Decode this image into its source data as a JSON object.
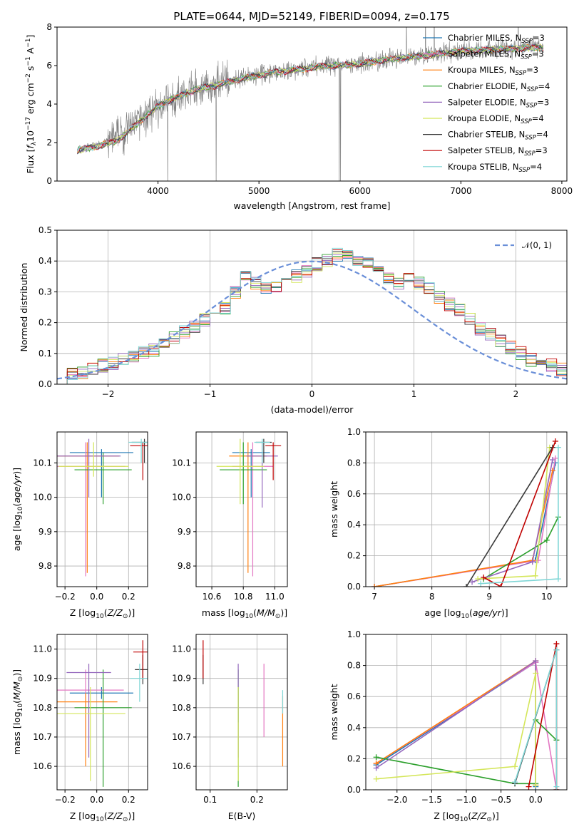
{
  "figure": {
    "title": "PLATE=0644, MJD=52149, FIBERID=0094, z=0.175",
    "colors": {
      "data": "#808080",
      "models": [
        "#1f77b4",
        "#e377c2",
        "#ff7f0e",
        "#2ca02c",
        "#9467bd",
        "#d4e65a",
        "#3a3a3a",
        "#c00000",
        "#7fd6d6"
      ],
      "normal": "#6a8fd8",
      "grid": "#b0b0b0"
    }
  },
  "chart_data": [
    {
      "id": "spectrum",
      "type": "line",
      "xlabel": "wavelength [Angstrom, rest frame]",
      "ylabel": "Flux [f_λ 10^-17 erg cm^-2 s^-1 A^-1]",
      "xlim": [
        3000,
        8050
      ],
      "ylim": [
        0,
        8
      ],
      "xticks": [
        4000,
        5000,
        6000,
        7000,
        8000
      ],
      "yticks": [
        0,
        2,
        4,
        6,
        8
      ],
      "grid": false,
      "legend_position": "top-right",
      "x": [
        3200,
        3400,
        3600,
        3800,
        4000,
        4200,
        4400,
        4600,
        4800,
        5000,
        5200,
        5400,
        5600,
        5800,
        6000,
        6200,
        6400,
        6600,
        6800,
        7000,
        7200,
        7400,
        7600,
        7800
      ],
      "data_y": [
        1.7,
        1.9,
        2.3,
        3.1,
        3.9,
        4.4,
        4.8,
        5.0,
        5.3,
        5.5,
        5.7,
        5.8,
        6.0,
        6.0,
        6.1,
        6.3,
        6.4,
        6.5,
        6.6,
        6.8,
        6.8,
        6.9,
        6.9,
        7.0
      ],
      "model_y": [
        1.6,
        1.8,
        2.1,
        3.0,
        3.9,
        4.4,
        4.8,
        5.0,
        5.3,
        5.5,
        5.7,
        5.8,
        5.95,
        6.0,
        6.1,
        6.25,
        6.4,
        6.5,
        6.6,
        6.75,
        6.8,
        6.85,
        6.9,
        6.95
      ],
      "series_legend": [
        {
          "label": "Chabrier MILES, N",
          "sub": "SSP",
          "suffix": "=3"
        },
        {
          "label": "Salpeter MILES, N",
          "sub": "SSP",
          "suffix": "=3"
        },
        {
          "label": "Kroupa MILES, N",
          "sub": "SSP",
          "suffix": "=3"
        },
        {
          "label": "Chabrier ELODIE, N",
          "sub": "SSP",
          "suffix": "=4"
        },
        {
          "label": "Salpeter ELODIE, N",
          "sub": "SSP",
          "suffix": "=3"
        },
        {
          "label": "Kroupa ELODIE, N",
          "sub": "SSP",
          "suffix": "=4"
        },
        {
          "label": "Chabrier STELIB, N",
          "sub": "SSP",
          "suffix": "=4"
        },
        {
          "label": "Salpeter STELIB, N",
          "sub": "SSP",
          "suffix": "=3"
        },
        {
          "label": "Kroupa STELIB, N",
          "sub": "SSP",
          "suffix": "=4"
        }
      ]
    },
    {
      "id": "residuals",
      "type": "line",
      "xlabel": "(data-model)/error",
      "ylabel": "Normed distribution",
      "xlim": [
        -2.5,
        2.5
      ],
      "ylim": [
        0,
        0.5
      ],
      "xticks": [
        -2,
        -1,
        0,
        1,
        2
      ],
      "yticks": [
        0.0,
        0.1,
        0.2,
        0.3,
        0.4,
        0.5
      ],
      "grid": true,
      "legend_position": "top-right",
      "legend": "𝒩(0, 1)",
      "bin_width": 0.1,
      "hist_y": [
        0.02,
        0.03,
        0.04,
        0.05,
        0.06,
        0.07,
        0.08,
        0.09,
        0.1,
        0.11,
        0.13,
        0.15,
        0.17,
        0.19,
        0.21,
        0.23,
        0.25,
        0.3,
        0.35,
        0.33,
        0.31,
        0.32,
        0.34,
        0.35,
        0.37,
        0.39,
        0.4,
        0.42,
        0.43,
        0.4,
        0.39,
        0.36,
        0.34,
        0.33,
        0.34,
        0.33,
        0.31,
        0.28,
        0.26,
        0.24,
        0.21,
        0.18,
        0.16,
        0.14,
        0.12,
        0.1,
        0.08,
        0.07,
        0.06,
        0.05
      ]
    },
    {
      "id": "age-vs-Z",
      "type": "scatter",
      "xlabel": "Z [log10(Z/Z☉)]",
      "ylabel": "age [log10(age/yr)]",
      "xlim": [
        -0.25,
        0.32
      ],
      "ylim": [
        9.74,
        10.19
      ],
      "xticks": [
        -0.2,
        0.0,
        0.2
      ],
      "yticks": [
        9.8,
        9.9,
        10.0,
        10.1
      ],
      "grid": true,
      "points": [
        {
          "x": 0.03,
          "xerr": 0.2,
          "y": 10.13,
          "ylo": 10.0,
          "yhi": 10.14
        },
        {
          "x": -0.07,
          "xerr": 0.25,
          "y": 10.09,
          "ylo": 9.77,
          "yhi": 10.16
        },
        {
          "x": -0.06,
          "xerr": 0.2,
          "y": 10.12,
          "ylo": 9.78,
          "yhi": 10.16
        },
        {
          "x": 0.04,
          "xerr": 0.18,
          "y": 10.08,
          "ylo": 9.98,
          "yhi": 10.13
        },
        {
          "x": -0.05,
          "xerr": 0.2,
          "y": 10.12,
          "ylo": 10.0,
          "yhi": 10.17
        },
        {
          "x": -0.02,
          "xerr": 0.22,
          "y": 10.09,
          "ylo": 10.06,
          "yhi": 10.16
        },
        {
          "x": 0.3,
          "xerr": 0.08,
          "y": 10.16,
          "ylo": 10.1,
          "yhi": 10.17
        },
        {
          "x": 0.29,
          "xerr": 0.08,
          "y": 10.15,
          "ylo": 10.05,
          "yhi": 10.16
        },
        {
          "x": 0.28,
          "xerr": 0.08,
          "y": 10.16,
          "ylo": 10.1,
          "yhi": 10.17
        }
      ]
    },
    {
      "id": "age-vs-mass",
      "type": "scatter",
      "xlabel": "mass [log10(M/M☉)]",
      "ylabel": "",
      "xlim": [
        10.5,
        11.08
      ],
      "ylim": [
        9.74,
        10.19
      ],
      "xticks": [
        10.6,
        10.8,
        11.0
      ],
      "yticks": [
        9.8,
        9.9,
        10.0,
        10.1
      ],
      "grid": true,
      "points": [
        {
          "x": 10.85,
          "xerr": 0.12,
          "y": 10.13,
          "ylo": 10.0,
          "yhi": 10.14
        },
        {
          "x": 10.86,
          "xerr": 0.13,
          "y": 10.09,
          "ylo": 9.77,
          "yhi": 10.16
        },
        {
          "x": 10.83,
          "xerr": 0.12,
          "y": 10.12,
          "ylo": 9.78,
          "yhi": 10.16
        },
        {
          "x": 10.8,
          "xerr": 0.15,
          "y": 10.08,
          "ylo": 9.98,
          "yhi": 10.16
        },
        {
          "x": 10.92,
          "xerr": 0.1,
          "y": 10.12,
          "ylo": 9.97,
          "yhi": 10.16
        },
        {
          "x": 10.78,
          "xerr": 0.15,
          "y": 10.09,
          "ylo": 9.98,
          "yhi": 10.17
        },
        {
          "x": 10.93,
          "xerr": 0.05,
          "y": 10.16,
          "ylo": 10.1,
          "yhi": 10.17
        },
        {
          "x": 10.99,
          "xerr": 0.05,
          "y": 10.15,
          "ylo": 10.05,
          "yhi": 10.16
        },
        {
          "x": 10.92,
          "xerr": 0.05,
          "y": 10.16,
          "ylo": 10.1,
          "yhi": 10.17
        }
      ]
    },
    {
      "id": "weight-vs-age",
      "type": "line",
      "xlabel": "age [log10(age/yr)]",
      "ylabel": "mass weight",
      "xlim": [
        6.85,
        10.35
      ],
      "ylim": [
        0,
        1
      ],
      "xticks": [
        7,
        8,
        9,
        10
      ],
      "yticks": [
        0.0,
        0.2,
        0.4,
        0.6,
        0.8,
        1.0
      ],
      "grid": true,
      "series": [
        {
          "x": [
            7.0,
            9.8,
            10.15
          ],
          "y": [
            0.0,
            0.17,
            0.8
          ]
        },
        {
          "x": [
            7.0,
            9.85,
            10.15
          ],
          "y": [
            0.0,
            0.17,
            0.83
          ]
        },
        {
          "x": [
            7.0,
            9.75,
            10.1
          ],
          "y": [
            0.0,
            0.17,
            0.75
          ]
        },
        {
          "x": [
            8.9,
            10.0,
            10.2
          ],
          "y": [
            0.05,
            0.3,
            0.45
          ]
        },
        {
          "x": [
            8.7,
            9.75,
            10.1
          ],
          "y": [
            0.03,
            0.16,
            0.82
          ]
        },
        {
          "x": [
            8.8,
            9.8,
            10.05
          ],
          "y": [
            0.05,
            0.07,
            0.9
          ]
        },
        {
          "x": [
            8.6,
            10.1
          ],
          "y": [
            0.0,
            0.9
          ]
        },
        {
          "x": [
            8.9,
            9.2,
            10.15
          ],
          "y": [
            0.06,
            0.0,
            0.94
          ]
        },
        {
          "x": [
            8.85,
            10.2,
            10.2
          ],
          "y": [
            0.02,
            0.05,
            0.9
          ]
        }
      ]
    },
    {
      "id": "mass-vs-Z",
      "type": "scatter",
      "xlabel": "Z [log10(Z/Z☉)]",
      "ylabel": "mass [log10(M/M☉)]",
      "xlim": [
        -0.25,
        0.32
      ],
      "ylim": [
        10.52,
        11.05
      ],
      "xticks": [
        -0.2,
        0.0,
        0.2
      ],
      "yticks": [
        10.6,
        10.7,
        10.8,
        10.9,
        11.0
      ],
      "grid": true,
      "points": [
        {
          "x": 0.03,
          "xerr": 0.2,
          "y": 10.85,
          "ylo": 10.83,
          "yhi": 10.87
        },
        {
          "x": -0.07,
          "xerr": 0.24,
          "y": 10.86,
          "ylo": 10.7,
          "yhi": 10.93
        },
        {
          "x": -0.07,
          "xerr": 0.2,
          "y": 10.82,
          "ylo": 10.6,
          "yhi": 10.85
        },
        {
          "x": 0.04,
          "xerr": 0.18,
          "y": 10.8,
          "ylo": 10.53,
          "yhi": 10.93
        },
        {
          "x": -0.05,
          "xerr": 0.14,
          "y": 10.92,
          "ylo": 10.63,
          "yhi": 10.95
        },
        {
          "x": -0.04,
          "xerr": 0.22,
          "y": 10.78,
          "ylo": 10.55,
          "yhi": 10.87
        },
        {
          "x": 0.29,
          "xerr": 0.05,
          "y": 10.93,
          "ylo": 10.88,
          "yhi": 10.98
        },
        {
          "x": 0.29,
          "xerr": 0.06,
          "y": 10.99,
          "ylo": 10.9,
          "yhi": 11.03
        },
        {
          "x": 0.27,
          "xerr": 0.06,
          "y": 10.9,
          "ylo": 10.82,
          "yhi": 10.95
        }
      ]
    },
    {
      "id": "mass-vs-EBV",
      "type": "scatter",
      "xlabel": "E(B-V)",
      "ylabel": "",
      "xlim": [
        0.07,
        0.265
      ],
      "ylim": [
        10.52,
        11.05
      ],
      "xticks": [
        0.1,
        0.2
      ],
      "yticks": [
        10.6,
        10.7,
        10.8,
        10.9,
        11.0
      ],
      "grid": true,
      "points": [
        {
          "x": 0.16,
          "y": 10.85,
          "ylo": 10.75,
          "yhi": 10.87
        },
        {
          "x": 0.215,
          "y": 10.86,
          "ylo": 10.7,
          "yhi": 10.95
        },
        {
          "x": 0.255,
          "y": 10.82,
          "ylo": 10.6,
          "yhi": 10.84
        },
        {
          "x": 0.16,
          "y": 10.8,
          "ylo": 10.53,
          "yhi": 10.93
        },
        {
          "x": 0.16,
          "y": 10.92,
          "ylo": 10.63,
          "yhi": 10.95
        },
        {
          "x": 0.16,
          "y": 10.78,
          "ylo": 10.55,
          "yhi": 10.87
        },
        {
          "x": 0.085,
          "y": 10.93,
          "ylo": 10.88,
          "yhi": 10.98
        },
        {
          "x": 0.085,
          "y": 10.99,
          "ylo": 10.9,
          "yhi": 11.03
        },
        {
          "x": 0.255,
          "y": 10.85,
          "ylo": 10.78,
          "yhi": 10.86
        }
      ]
    },
    {
      "id": "weight-vs-Z",
      "type": "line",
      "xlabel": "Z [log10(Z/Z☉)]",
      "ylabel": "mass weight",
      "xlim": [
        -2.45,
        0.45
      ],
      "ylim": [
        0,
        1
      ],
      "xticks": [
        -2.0,
        -1.5,
        -1.0,
        -0.5,
        0.0
      ],
      "yticks": [
        0.0,
        0.2,
        0.4,
        0.6,
        0.8,
        1.0
      ],
      "grid": true,
      "series": [
        {
          "x": [
            -2.3,
            0.0,
            0.0
          ],
          "y": [
            0.16,
            0.82,
            0.02
          ]
        },
        {
          "x": [
            -2.3,
            0.0,
            0.3
          ],
          "y": [
            0.17,
            0.82,
            0.0
          ]
        },
        {
          "x": [
            -2.3,
            0.0,
            0.0
          ],
          "y": [
            0.17,
            0.83,
            0.03
          ]
        },
        {
          "x": [
            -2.3,
            -0.3,
            0.0,
            0.0,
            0.3
          ],
          "y": [
            0.21,
            0.04,
            0.04,
            0.45,
            0.32
          ]
        },
        {
          "x": [
            -2.3,
            0.0,
            0.0
          ],
          "y": [
            0.14,
            0.83,
            0.03
          ]
        },
        {
          "x": [
            -2.3,
            -0.3,
            0.0,
            0.0
          ],
          "y": [
            0.07,
            0.15,
            0.75,
            0.03
          ]
        },
        {
          "x": [
            -0.3,
            0.3,
            0.3
          ],
          "y": [
            0.04,
            0.9,
            0.0
          ]
        },
        {
          "x": [
            -0.1,
            0.3,
            0.3
          ],
          "y": [
            0.02,
            0.94,
            0.0
          ]
        },
        {
          "x": [
            -0.3,
            0.3,
            0.3
          ],
          "y": [
            0.05,
            0.9,
            0.02
          ]
        }
      ]
    }
  ]
}
